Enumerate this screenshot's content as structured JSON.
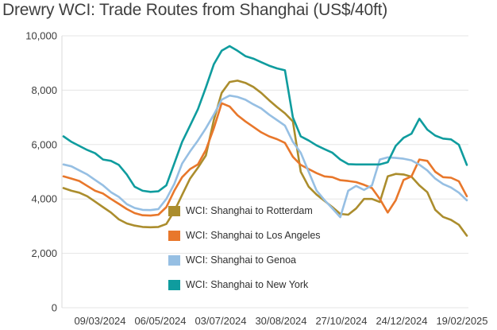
{
  "header": {
    "title": "Drewry WCI: Trade Routes from Shanghai (US$/40ft)"
  },
  "colors": {
    "rotterdam": "#AB8D2D",
    "los_angeles": "#E8772B",
    "genoa": "#96BFE3",
    "new_york": "#0F9C9E",
    "gridline": "#e5e5e5",
    "axis_line": "#d9d9d9",
    "text": "#3c3c3c"
  },
  "chart_data": {
    "type": "line",
    "title": "Drewry WCI: Trade Routes from Shanghai (US$/40ft)",
    "xlabel": "",
    "ylabel": "",
    "ylim": [
      0,
      10000
    ],
    "grid": true,
    "legend_position": "inside-left-lower",
    "y_ticks": [
      {
        "value": 0,
        "label": "0"
      },
      {
        "value": 2000,
        "label": "2,000"
      },
      {
        "value": 4000,
        "label": "4,000"
      },
      {
        "value": 6000,
        "label": "6,000"
      },
      {
        "value": 8000,
        "label": "8,000"
      },
      {
        "value": 10000,
        "label": "10,000"
      }
    ],
    "x_tick_labels": [
      "09/03/2024",
      "06/05/2024",
      "03/07/2024",
      "30/08/2024",
      "27/10/2024",
      "24/12/2024",
      "19/02/2025"
    ],
    "series": [
      {
        "name": "WCI: Shanghai to Rotterdam",
        "color": "#AB8D2D",
        "values": [
          4400,
          4300,
          4230,
          4100,
          3900,
          3700,
          3500,
          3250,
          3100,
          3020,
          2970,
          2960,
          2970,
          3080,
          3550,
          4150,
          4750,
          5150,
          5600,
          6900,
          7900,
          8300,
          8350,
          8270,
          8120,
          7900,
          7630,
          7380,
          7150,
          6850,
          5000,
          4450,
          4160,
          3930,
          3700,
          3450,
          3420,
          3650,
          4000,
          4000,
          3890,
          4830,
          4920,
          4900,
          4820,
          4500,
          4250,
          3600,
          3340,
          3230,
          3050,
          2650
        ]
      },
      {
        "name": "WCI: Shanghai to Los Angeles",
        "color": "#E8772B",
        "values": [
          4830,
          4750,
          4660,
          4480,
          4300,
          4200,
          4000,
          3820,
          3630,
          3480,
          3400,
          3390,
          3420,
          3700,
          4300,
          4800,
          5100,
          5270,
          5800,
          6600,
          7520,
          7400,
          7080,
          6850,
          6650,
          6450,
          6300,
          6200,
          6060,
          5550,
          5250,
          5100,
          4950,
          4830,
          4800,
          4690,
          4660,
          4620,
          4520,
          4400,
          4000,
          3500,
          3950,
          4700,
          4830,
          5450,
          5400,
          5000,
          4800,
          4780,
          4650,
          4100
        ]
      },
      {
        "name": "WCI: Shanghai to Genoa",
        "color": "#96BFE3",
        "values": [
          5270,
          5200,
          5050,
          4900,
          4700,
          4500,
          4250,
          4075,
          3810,
          3670,
          3600,
          3590,
          3630,
          4000,
          4550,
          5300,
          5750,
          6150,
          6600,
          7100,
          7650,
          7800,
          7750,
          7650,
          7480,
          7330,
          7100,
          6900,
          6700,
          6100,
          5700,
          5000,
          4310,
          3960,
          3650,
          3330,
          4300,
          4480,
          4330,
          4500,
          5450,
          5530,
          5510,
          5480,
          5420,
          5260,
          5050,
          4750,
          4550,
          4420,
          4230,
          3950
        ]
      },
      {
        "name": "WCI: Shanghai to New York",
        "color": "#0F9C9E",
        "values": [
          6300,
          6100,
          5950,
          5800,
          5680,
          5450,
          5400,
          5250,
          4900,
          4450,
          4300,
          4260,
          4280,
          4500,
          5300,
          6100,
          6700,
          7300,
          8100,
          8950,
          9450,
          9620,
          9450,
          9250,
          9160,
          9030,
          8900,
          8800,
          8730,
          7000,
          6300,
          6150,
          5970,
          5830,
          5700,
          5450,
          5280,
          5270,
          5270,
          5270,
          5270,
          5350,
          5950,
          6250,
          6400,
          6950,
          6550,
          6330,
          6220,
          6190,
          5990,
          5250
        ]
      }
    ]
  }
}
